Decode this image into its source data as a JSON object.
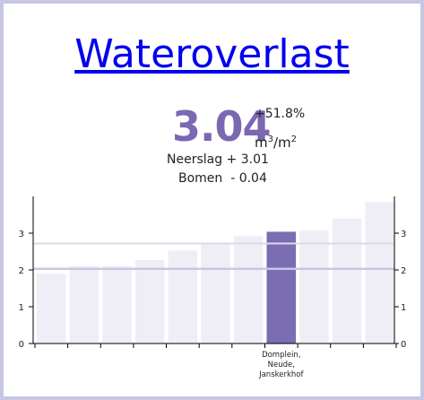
{
  "title": "Wateroverlast",
  "kpi": {
    "value": "3.04",
    "change": "+51.8%",
    "unit_base": "m",
    "unit_exp1": "3",
    "unit_sep": "/m",
    "unit_exp2": "2",
    "rain_line": "Neerslag + 3.01",
    "trees_line": "Bomen  - 0.04"
  },
  "colors": {
    "bar": "#efeef7",
    "highlight": "#7b6db2",
    "value_text": "#7b68b0",
    "title_link": "#0000ee",
    "frame": "#c5c7e2",
    "reference_line_dark": "#c9c6e3",
    "reference_line_light": "#dcdae9"
  },
  "chart_data": {
    "type": "bar",
    "values": [
      1.9,
      2.1,
      2.1,
      2.27,
      2.53,
      2.75,
      2.92,
      3.04,
      3.08,
      3.4,
      3.85
    ],
    "highlight_index": 7,
    "highlight_label": [
      "Domplein,",
      "Neude,",
      "Janskerkhof"
    ],
    "ylim": [
      0,
      4
    ],
    "yticks": [
      "0",
      "1",
      "2",
      "3"
    ],
    "reference_lines": [
      2.03,
      2.72
    ],
    "grid": false
  }
}
